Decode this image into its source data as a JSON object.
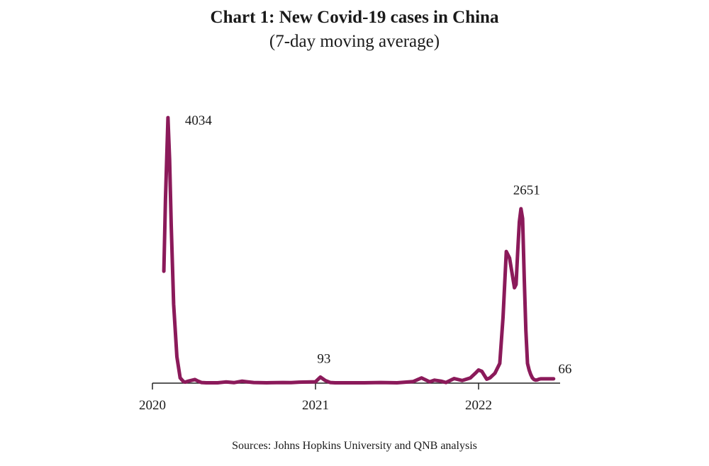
{
  "chart_data": {
    "type": "line",
    "title": "Chart 1: New Covid-19 cases in China",
    "subtitle": "(7-day moving average)",
    "source": "Sources: Johns Hopkins University and QNB analysis",
    "xlabel": "",
    "ylabel": "",
    "x_range": [
      2020.0,
      2022.5
    ],
    "ylim": [
      0,
      4100
    ],
    "grid": false,
    "legend": "none",
    "line_color": "#8b1a5a",
    "x_ticks": [
      {
        "value": 2020,
        "label": "2020"
      },
      {
        "value": 2021,
        "label": "2021"
      },
      {
        "value": 2022,
        "label": "2022"
      }
    ],
    "series": [
      {
        "name": "",
        "x": [
          2020.07,
          2020.08,
          2020.095,
          2020.105,
          2020.115,
          2020.13,
          2020.15,
          2020.17,
          2020.19,
          2020.2,
          2020.22,
          2020.26,
          2020.28,
          2020.3,
          2020.33,
          2020.4,
          2020.45,
          2020.5,
          2020.55,
          2020.58,
          2020.62,
          2020.7,
          2020.8,
          2020.85,
          2020.9,
          2021.0,
          2021.03,
          2021.06,
          2021.09,
          2021.12,
          2021.2,
          2021.3,
          2021.4,
          2021.5,
          2021.6,
          2021.65,
          2021.7,
          2021.73,
          2021.77,
          2021.8,
          2021.85,
          2021.9,
          2021.95,
          2021.98,
          2022.0,
          2022.02,
          2022.05,
          2022.07,
          2022.1,
          2022.13,
          2022.15,
          2022.17,
          2022.19,
          2022.21,
          2022.22,
          2022.23,
          2022.24,
          2022.25,
          2022.26,
          2022.27,
          2022.28,
          2022.29,
          2022.3,
          2022.31,
          2022.32,
          2022.33,
          2022.34,
          2022.35,
          2022.36,
          2022.37,
          2022.38,
          2022.4,
          2022.42,
          2022.44,
          2022.46
        ],
        "y": [
          1700,
          2800,
          4034,
          3400,
          2400,
          1200,
          400,
          80,
          25,
          15,
          30,
          55,
          30,
          10,
          5,
          5,
          18,
          8,
          30,
          20,
          10,
          5,
          10,
          8,
          15,
          20,
          93,
          40,
          10,
          5,
          5,
          5,
          10,
          5,
          25,
          80,
          20,
          45,
          30,
          10,
          70,
          40,
          80,
          150,
          200,
          180,
          60,
          80,
          150,
          300,
          1000,
          2000,
          1900,
          1600,
          1450,
          1500,
          2000,
          2450,
          2651,
          2500,
          1600,
          800,
          300,
          200,
          130,
          80,
          55,
          45,
          50,
          60,
          66,
          66,
          66,
          66,
          66
        ]
      }
    ],
    "annotations": [
      {
        "x": 2020.095,
        "y": 4034,
        "label": "4034"
      },
      {
        "x": 2021.03,
        "y": 93,
        "label": "93"
      },
      {
        "x": 2022.26,
        "y": 2651,
        "label": "2651"
      },
      {
        "x": 2022.38,
        "y": 66,
        "label": "66"
      }
    ]
  }
}
